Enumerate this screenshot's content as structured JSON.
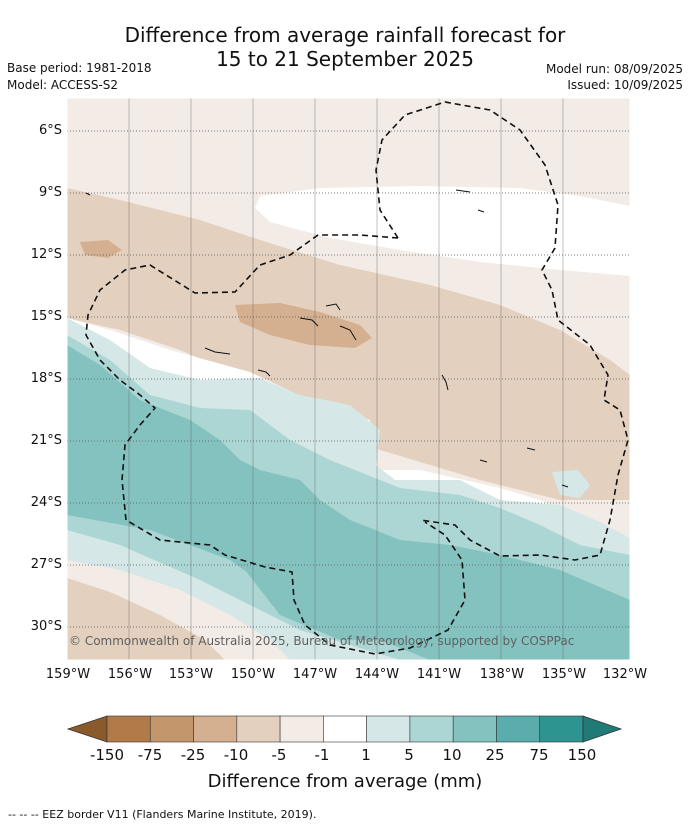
{
  "title_line1": "Difference from average rainfall forecast for",
  "title_line2": "15 to 21 September 2025",
  "base_period": "Base period: 1981-2018",
  "model": "Model: ACCESS-S2",
  "model_run": "Model run: 08/09/2025",
  "issued": "Issued: 10/09/2025",
  "lon_labels": [
    "159°W",
    "156°W",
    "153°W",
    "150°W",
    "147°W",
    "144°W",
    "141°W",
    "138°W",
    "135°W",
    "132°W"
  ],
  "lat_labels": [
    "6°S",
    "9°S",
    "12°S",
    "15°S",
    "18°S",
    "21°S",
    "24°S",
    "27°S",
    "30°S"
  ],
  "copyright": "© Commonwealth of Australia 2025, Bureau of Meteorology, supported by COSPPac",
  "colorbar": {
    "labels": [
      "-150",
      "-75",
      "-25",
      "-10",
      "-5",
      "-1",
      "1",
      "5",
      "10",
      "25",
      "75",
      "150"
    ],
    "colors": [
      "#8a5a2b",
      "#b07b48",
      "#c4966c",
      "#d4b090",
      "#e4d0bf",
      "#f3ebe6",
      "#ffffff",
      "#d5e8e7",
      "#acd6d4",
      "#84c2c0",
      "#5aadab",
      "#2e9490",
      "#207a76"
    ],
    "title": "Difference from average (mm)"
  },
  "footnote": "--  --  -- EEZ border V11 (Flanders Marine Institute, 2019)."
}
